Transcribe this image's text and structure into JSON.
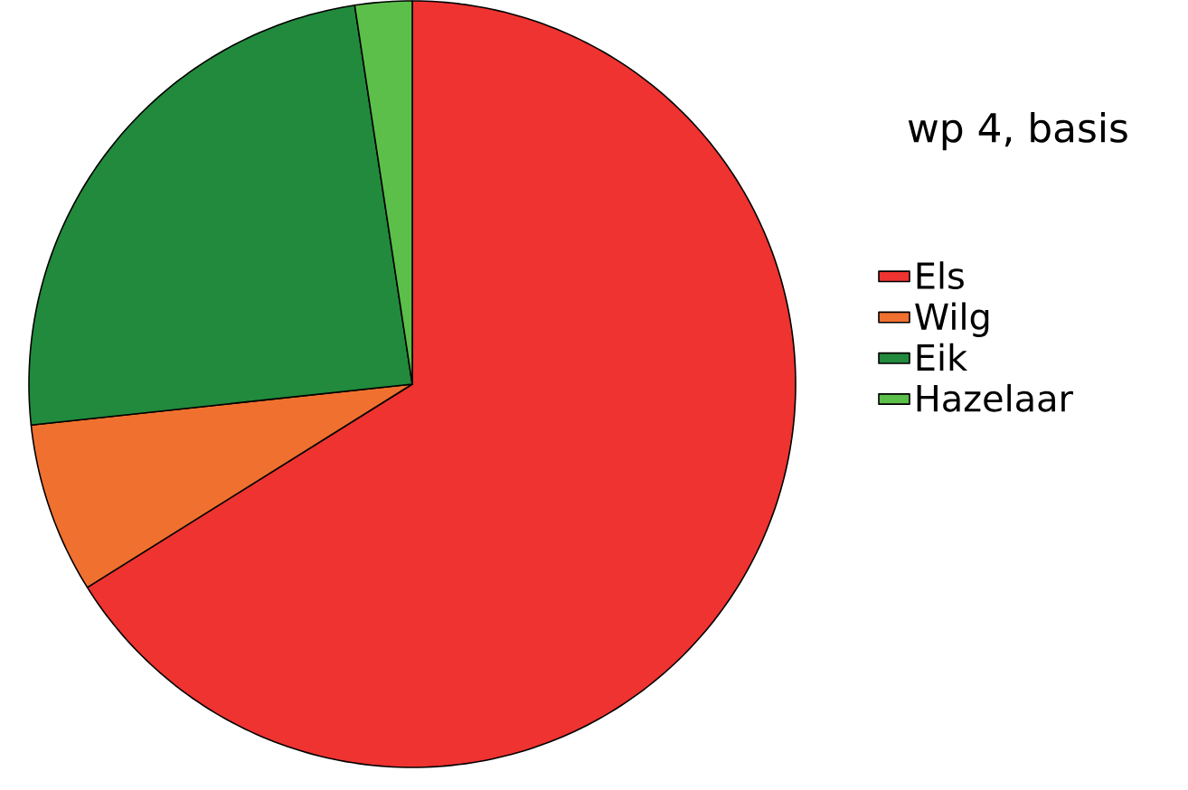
{
  "chart_data": {
    "type": "pie",
    "title": "wp 4, basis",
    "categories": [
      "Els",
      "Wilg",
      "Eik",
      "Hazelaar"
    ],
    "values": [
      66.1,
      7.2,
      24.3,
      2.4
    ],
    "colors": [
      "#ee3330",
      "#f07030",
      "#218a3d",
      "#5cbf4a"
    ],
    "legend": "right"
  }
}
